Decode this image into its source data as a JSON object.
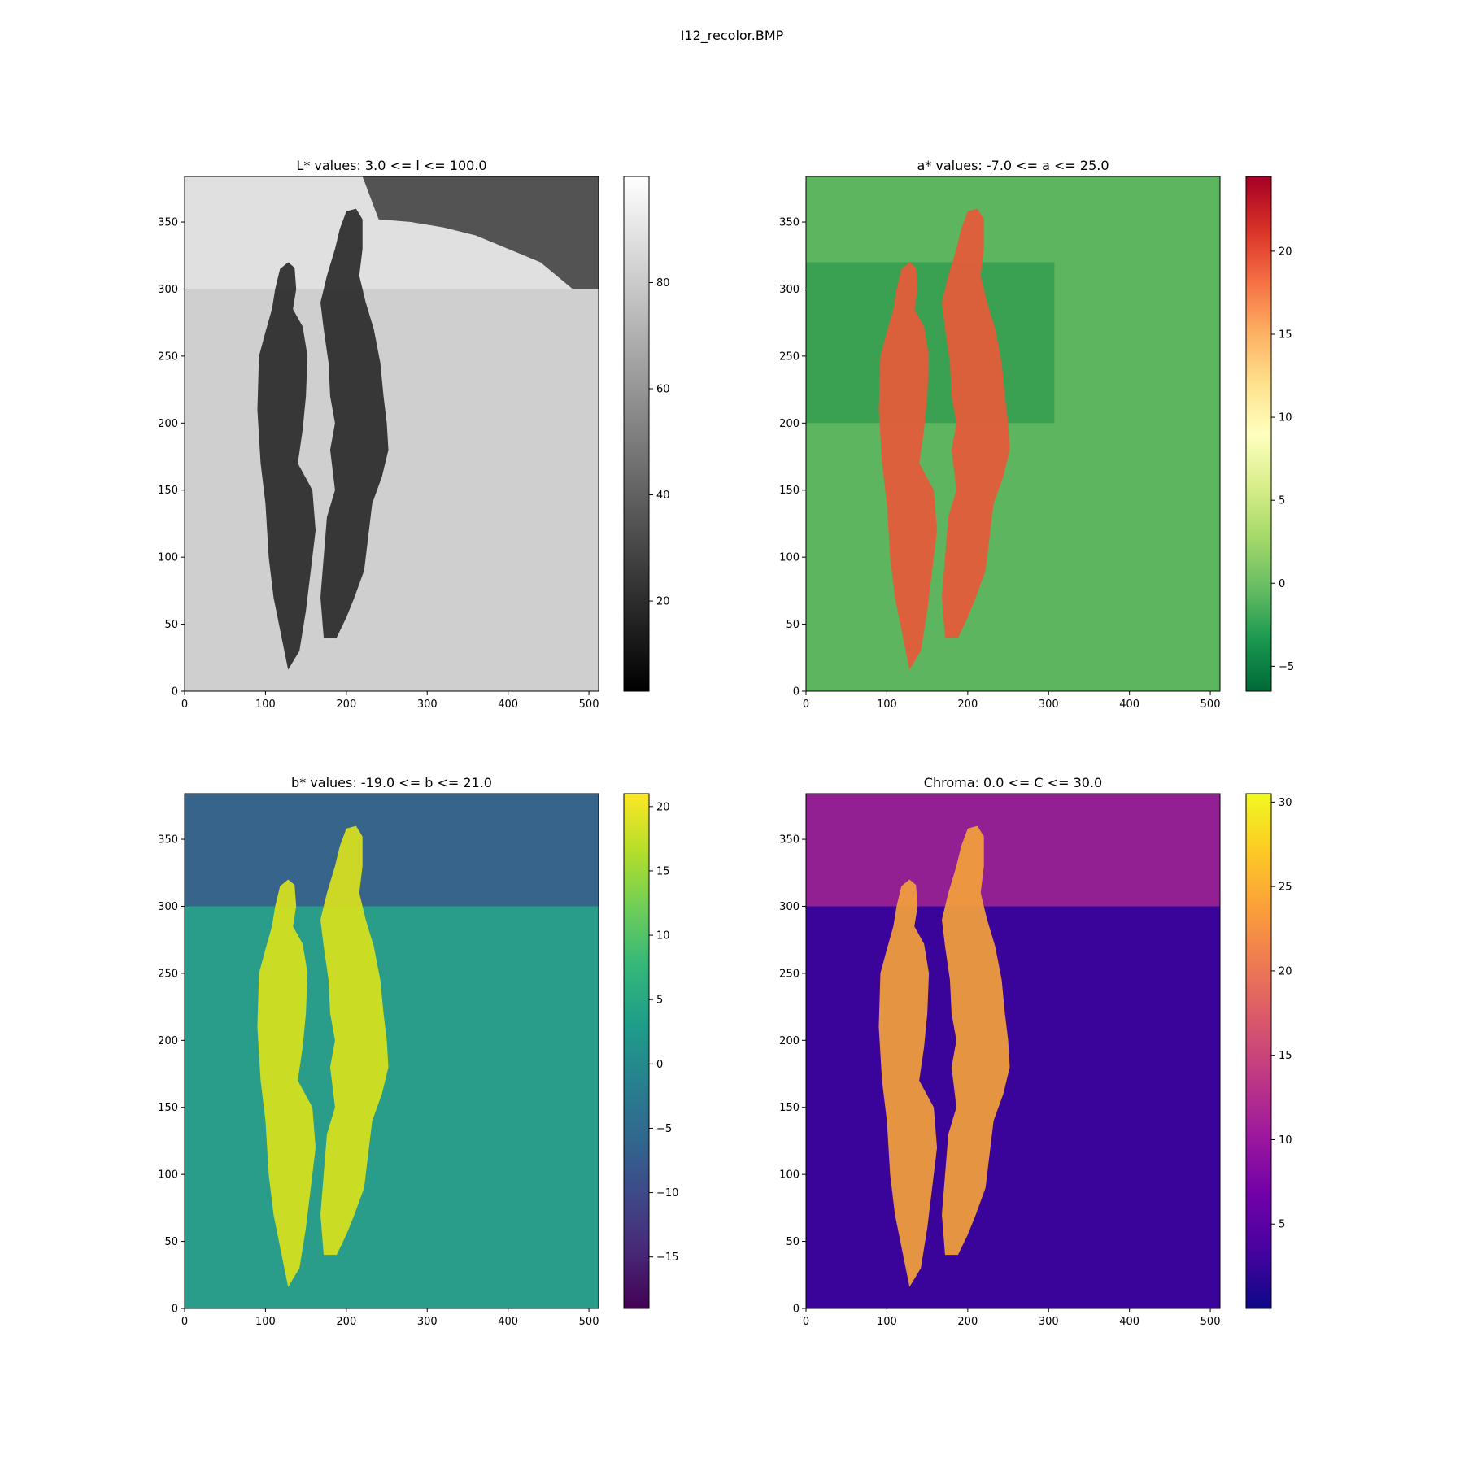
{
  "figure": {
    "title": "I12_recolor.BMP"
  },
  "chart_data": [
    {
      "type": "heatmap",
      "title": "L* values: 3.0 <= l <= 100.0",
      "xlim": [
        0,
        512
      ],
      "ylim": [
        0,
        384
      ],
      "x_ticks": [
        0,
        100,
        200,
        300,
        400,
        500
      ],
      "y_ticks": [
        0,
        50,
        100,
        150,
        200,
        250,
        300,
        350
      ],
      "colormap": "gray",
      "colorbar": {
        "range": [
          3.0,
          100.0
        ],
        "ticks": [
          20,
          40,
          60,
          80
        ]
      },
      "colors": {
        "background": "#cfcfcf",
        "figure": "#2a2a2a",
        "sky": "#e6e6e6",
        "trees": "#3a3a3a"
      }
    },
    {
      "type": "heatmap",
      "title": "a* values: -7.0 <= a <= 25.0",
      "xlim": [
        0,
        512
      ],
      "ylim": [
        0,
        384
      ],
      "x_ticks": [
        0,
        100,
        200,
        300,
        400,
        500
      ],
      "y_ticks": [
        0,
        50,
        100,
        150,
        200,
        250,
        300,
        350
      ],
      "colormap": "RdYlGn_r",
      "colorbar": {
        "range": [
          -6.5,
          24.5
        ],
        "ticks": [
          -5,
          0,
          5,
          10,
          15,
          20
        ]
      },
      "colors": {
        "background": "#5db560",
        "figure": "#e8593a",
        "dark_band": "#1d8f49"
      }
    },
    {
      "type": "heatmap",
      "title": "b* values: -19.0 <= b <= 21.0",
      "xlim": [
        0,
        512
      ],
      "ylim": [
        0,
        384
      ],
      "x_ticks": [
        0,
        100,
        200,
        300,
        400,
        500
      ],
      "y_ticks": [
        0,
        50,
        100,
        150,
        200,
        250,
        300,
        350
      ],
      "colormap": "viridis",
      "colorbar": {
        "range": [
          -19.0,
          21.0
        ],
        "ticks": [
          -15,
          -10,
          -5,
          0,
          5,
          10,
          15,
          20
        ]
      },
      "colors": {
        "background": "#2a9d8a",
        "figure": "#d9e21c",
        "sky": "#3b528b"
      }
    },
    {
      "type": "heatmap",
      "title": "Chroma: 0.0 <= C <= 30.0",
      "xlim": [
        0,
        512
      ],
      "ylim": [
        0,
        384
      ],
      "x_ticks": [
        0,
        100,
        200,
        300,
        400,
        500
      ],
      "y_ticks": [
        0,
        50,
        100,
        150,
        200,
        250,
        300,
        350
      ],
      "colormap": "plasma",
      "colorbar": {
        "range": [
          0.0,
          30.5
        ],
        "ticks": [
          5,
          10,
          15,
          20,
          25,
          30
        ]
      },
      "colors": {
        "background": "#3a049a",
        "figure": "#f4a13a",
        "sky": "#b02a90"
      }
    }
  ]
}
